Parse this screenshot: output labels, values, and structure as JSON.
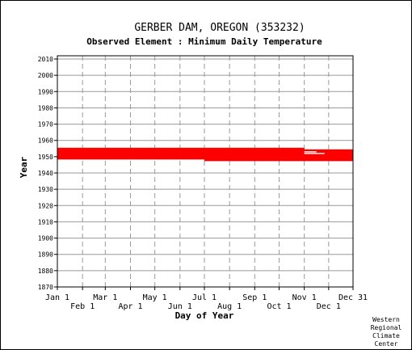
{
  "chart_data": {
    "type": "scatter",
    "title": "GERBER DAM, OREGON   (353232)",
    "subtitle": "Observed Element : Minimum Daily Temperature",
    "xlabel": "Day of Year",
    "ylabel": "Year",
    "xlim": [
      1,
      365
    ],
    "ylim": [
      1870,
      2012
    ],
    "yticks": [
      1870,
      1880,
      1890,
      1900,
      1910,
      1920,
      1930,
      1940,
      1950,
      1960,
      1970,
      1980,
      1990,
      2000,
      2010
    ],
    "xticks_top": [
      {
        "label": "Jan 1",
        "day": 1
      },
      {
        "label": "Mar 1",
        "day": 60
      },
      {
        "label": "May 1",
        "day": 121
      },
      {
        "label": "Jul 1",
        "day": 182
      },
      {
        "label": "Sep 1",
        "day": 244
      },
      {
        "label": "Nov 1",
        "day": 305
      },
      {
        "label": "Dec 31",
        "day": 365
      }
    ],
    "xticks_bottom": [
      {
        "label": "Feb 1",
        "day": 32
      },
      {
        "label": "Apr 1",
        "day": 91
      },
      {
        "label": "Jun 1",
        "day": 152
      },
      {
        "label": "Aug 1",
        "day": 213
      },
      {
        "label": "Oct 1",
        "day": 274
      },
      {
        "label": "Dec 1",
        "day": 335
      }
    ],
    "grid": true,
    "color": "#ff0000",
    "observed_years": [
      {
        "year": 1948,
        "start_day": 182,
        "end_day": 365
      },
      {
        "year": 1949,
        "start_day": 1,
        "end_day": 365
      },
      {
        "year": 1950,
        "start_day": 1,
        "end_day": 365
      },
      {
        "year": 1951,
        "start_day": 1,
        "end_day": 365
      },
      {
        "year": 1952,
        "start_day": 1,
        "end_day": 365
      },
      {
        "year": 1953,
        "start_day": 1,
        "end_day": 365
      },
      {
        "year": 1954,
        "start_day": 1,
        "end_day": 365
      },
      {
        "year": 1955,
        "start_day": 1,
        "end_day": 305
      }
    ],
    "gaps": [
      {
        "year": 1952,
        "start_day": 305,
        "end_day": 330
      },
      {
        "year": 1953,
        "start_day": 305,
        "end_day": 320
      }
    ]
  },
  "credit": {
    "line1": "Western",
    "line2": "Regional",
    "line3": "Climate",
    "line4": "Center"
  }
}
